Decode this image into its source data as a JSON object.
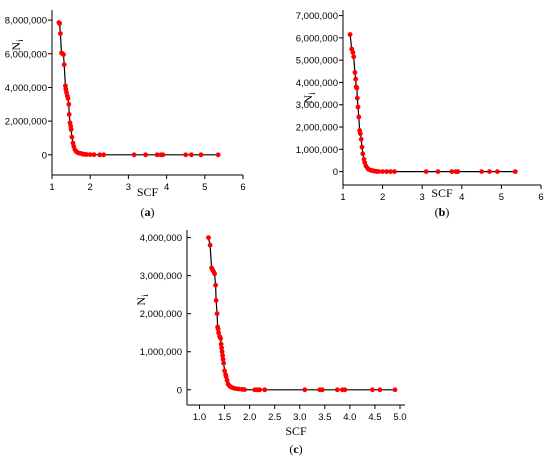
{
  "colors": {
    "marker": "#ff0000",
    "line": "#000000",
    "axis": "#000000"
  },
  "chart_data": [
    {
      "type": "line",
      "panel_label": {
        "open": "(",
        "letter": "a",
        "close": ")"
      },
      "xlabel": "SCF",
      "ylabel": "N",
      "ylabel_sub": "i",
      "xlim": [
        1,
        6
      ],
      "ylim": [
        -1200000,
        8600000
      ],
      "xticks": [
        "1",
        "2",
        "3",
        "4",
        "5",
        "6"
      ],
      "yticks": [
        "0",
        "2,000,000",
        "4,000,000",
        "6,000,000",
        "8,000,000"
      ],
      "series": [
        {
          "x": [
            1.18,
            1.2,
            1.22,
            1.25,
            1.28,
            1.3,
            1.32,
            1.35,
            1.36,
            1.38,
            1.4,
            1.42,
            1.44,
            1.45,
            1.47,
            1.49,
            1.5,
            1.52,
            1.55,
            1.57,
            1.6,
            1.63,
            1.66,
            1.7,
            1.75,
            1.8,
            1.85,
            1.9,
            2.0,
            2.1,
            2.25,
            2.35,
            3.15,
            3.45,
            3.75,
            3.85,
            3.9,
            4.5,
            4.65,
            4.9,
            5.35
          ],
          "y": [
            7850000,
            7800000,
            7200000,
            6050000,
            6000000,
            5950000,
            5350000,
            4100000,
            3900000,
            3700000,
            3500000,
            3350000,
            3000000,
            2400000,
            1900000,
            1700000,
            1500000,
            1050000,
            700000,
            500000,
            300000,
            200000,
            150000,
            100000,
            80000,
            50000,
            30000,
            20000,
            10000,
            5000,
            0,
            0,
            0,
            0,
            0,
            0,
            0,
            0,
            0,
            0,
            0
          ]
        }
      ]
    },
    {
      "type": "line",
      "panel_label": {
        "open": "(",
        "letter": "b",
        "close": ")"
      },
      "xlabel": "SCF",
      "ylabel": "N",
      "ylabel_sub": "i",
      "xlim": [
        1,
        6
      ],
      "ylim": [
        -600000,
        7250000
      ],
      "xticks": [
        "1",
        "2",
        "3",
        "4",
        "5",
        "6"
      ],
      "yticks": [
        "0",
        "1,000,000",
        "2,000,000",
        "3,000,000",
        "4,000,000",
        "5,000,000",
        "6,000,000",
        "7,000,000"
      ],
      "series": [
        {
          "x": [
            1.18,
            1.22,
            1.25,
            1.27,
            1.3,
            1.32,
            1.33,
            1.35,
            1.36,
            1.38,
            1.4,
            1.42,
            1.44,
            1.46,
            1.48,
            1.5,
            1.53,
            1.55,
            1.58,
            1.62,
            1.65,
            1.7,
            1.75,
            1.8,
            1.85,
            1.9,
            2.0,
            2.1,
            2.2,
            2.3,
            3.1,
            3.4,
            3.75,
            3.85,
            3.9,
            4.5,
            4.7,
            4.9,
            5.35
          ],
          "y": [
            6150000,
            5500000,
            5350000,
            5150000,
            4450000,
            4150000,
            3800000,
            3750000,
            3300000,
            2900000,
            2450000,
            1850000,
            1700000,
            1450000,
            1100000,
            800000,
            550000,
            400000,
            250000,
            150000,
            100000,
            60000,
            40000,
            20000,
            10000,
            5000,
            2000,
            1000,
            0,
            0,
            0,
            0,
            0,
            0,
            0,
            0,
            0,
            0,
            0
          ]
        }
      ]
    },
    {
      "type": "line",
      "panel_label": {
        "open": "(",
        "letter": "c",
        "close": ")"
      },
      "xlabel": "SCF",
      "ylabel": "N",
      "ylabel_sub": "i",
      "xlim": [
        0.75,
        5.1
      ],
      "ylim": [
        -400000,
        4200000
      ],
      "xticks": [
        "1.0",
        "1.5",
        "2.0",
        "2.5",
        "3.0",
        "3.5",
        "4.0",
        "4.5",
        "5.0"
      ],
      "yticks": [
        "0",
        "1,000,000",
        "2,000,000",
        "3,000,000",
        "4,000,000"
      ],
      "series": [
        {
          "x": [
            1.18,
            1.21,
            1.24,
            1.26,
            1.28,
            1.3,
            1.32,
            1.33,
            1.35,
            1.36,
            1.37,
            1.38,
            1.4,
            1.42,
            1.43,
            1.44,
            1.45,
            1.46,
            1.47,
            1.48,
            1.5,
            1.52,
            1.53,
            1.55,
            1.57,
            1.6,
            1.63,
            1.67,
            1.72,
            1.78,
            1.85,
            1.9,
            2.1,
            2.15,
            2.2,
            2.3,
            3.1,
            3.4,
            3.45,
            3.75,
            3.85,
            3.9,
            4.45,
            4.6,
            4.9
          ],
          "y": [
            4000000,
            3800000,
            3200000,
            3150000,
            3100000,
            3050000,
            2750000,
            2350000,
            2000000,
            1650000,
            1600000,
            1500000,
            1400000,
            1350000,
            1200000,
            1100000,
            1000000,
            900000,
            800000,
            700000,
            500000,
            400000,
            350000,
            250000,
            150000,
            100000,
            70000,
            50000,
            30000,
            20000,
            10000,
            5000,
            0,
            0,
            0,
            0,
            0,
            0,
            0,
            0,
            0,
            0,
            0,
            0,
            0
          ]
        }
      ]
    }
  ]
}
